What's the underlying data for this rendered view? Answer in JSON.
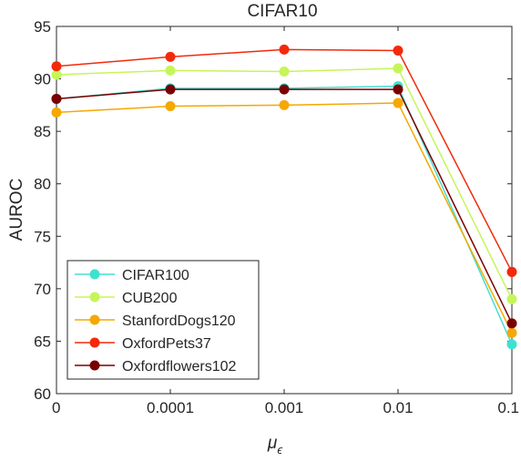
{
  "chart_data": {
    "type": "line",
    "title": "CIFAR10",
    "xlabel": "μ",
    "xlabel_subscript": "ϵ",
    "ylabel": "AUROC",
    "categories": [
      "0",
      "0.0001",
      "0.001",
      "0.01",
      "0.1"
    ],
    "ylim": [
      60,
      95
    ],
    "yticks": [
      "60",
      "65",
      "70",
      "75",
      "80",
      "85",
      "90",
      "95"
    ],
    "grid": false,
    "legend_position": "bottom-left",
    "series": [
      {
        "name": "CIFAR100",
        "color": "#40e0d0",
        "values": [
          88.1,
          89.1,
          89.1,
          89.3,
          64.7
        ]
      },
      {
        "name": "CUB200",
        "color": "#c6f55a",
        "values": [
          90.4,
          90.8,
          90.7,
          91.0,
          69.0
        ]
      },
      {
        "name": "StanfordDogs120",
        "color": "#f5a800",
        "values": [
          86.8,
          87.4,
          87.5,
          87.7,
          65.8
        ]
      },
      {
        "name": "OxfordPets37",
        "color": "#f22a0a",
        "values": [
          91.2,
          92.1,
          92.8,
          92.7,
          71.6
        ]
      },
      {
        "name": "Oxfordflowers102",
        "color": "#7a0000",
        "values": [
          88.1,
          89.0,
          89.0,
          89.0,
          66.7
        ]
      }
    ]
  }
}
